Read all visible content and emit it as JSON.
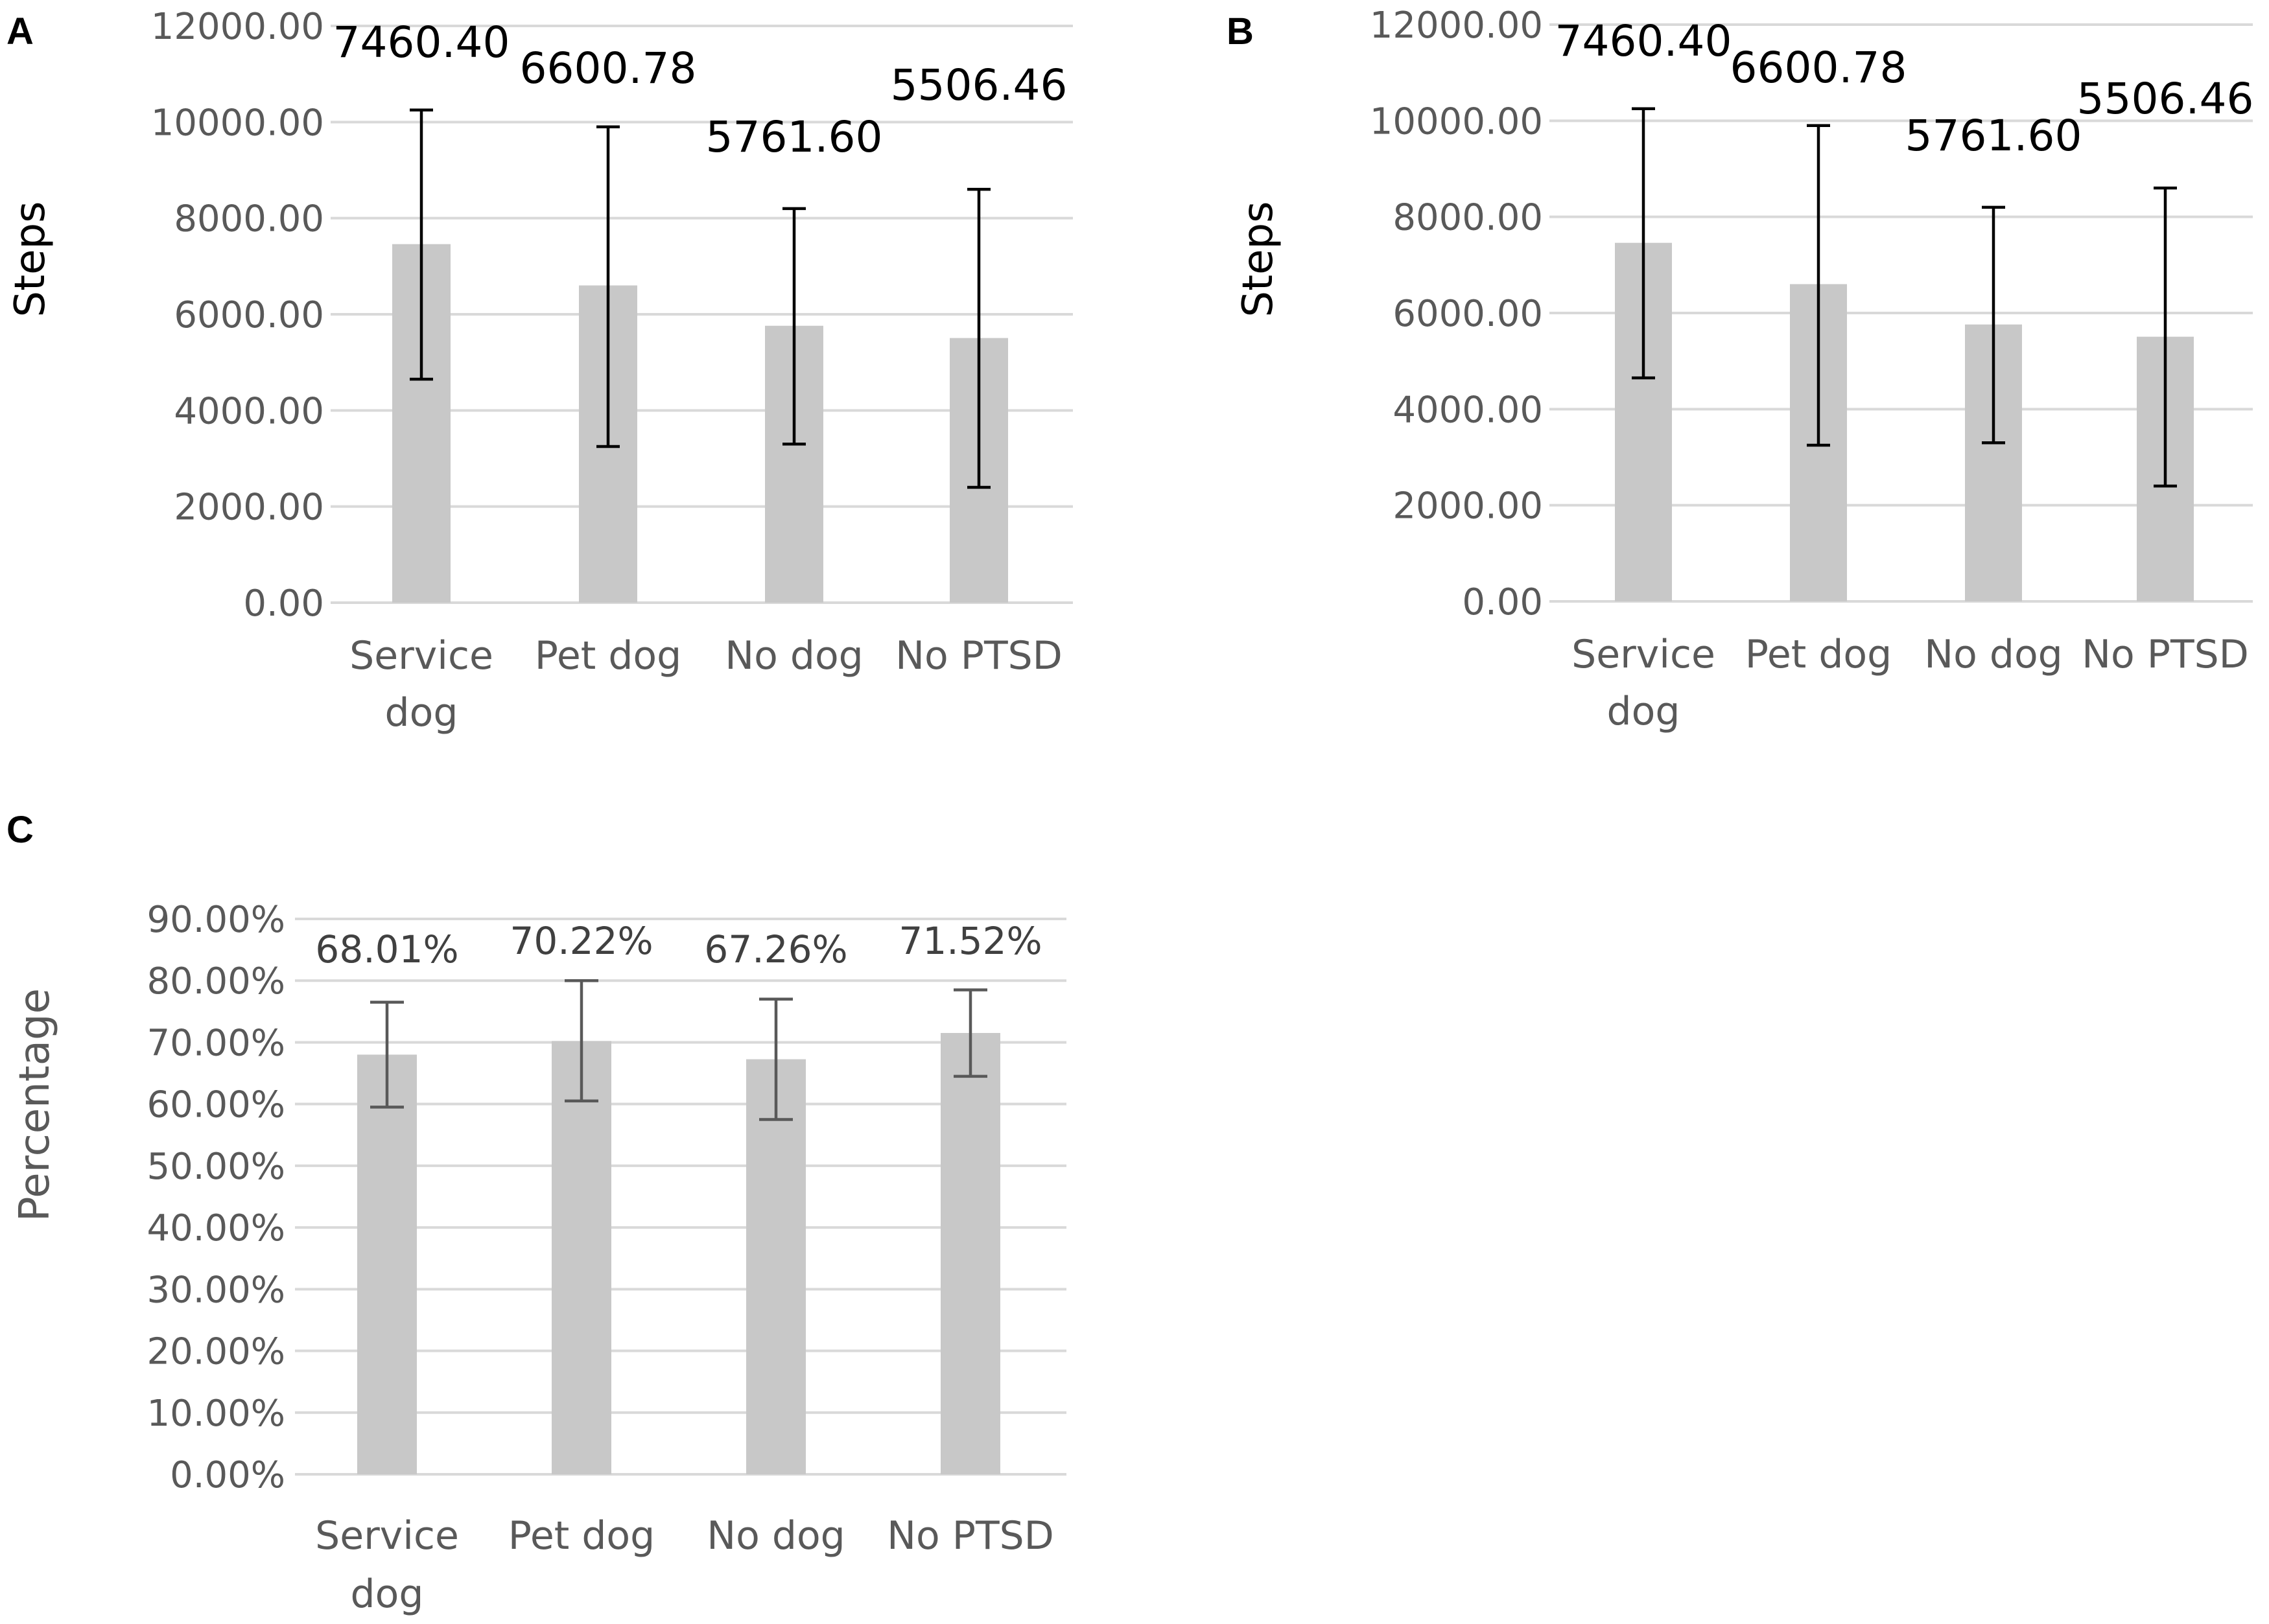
{
  "chart_data": [
    {
      "panel": "A",
      "type": "bar",
      "ylabel": "Steps",
      "categories": [
        [
          "Service",
          "dog"
        ],
        [
          "Pet dog"
        ],
        [
          "No dog"
        ],
        [
          "No PTSD"
        ]
      ],
      "values": [
        7460.4,
        6600.78,
        5761.6,
        5506.46
      ],
      "value_labels": [
        "7460.40",
        "6600.78",
        "5761.60",
        "5506.46"
      ],
      "error_low": [
        4650,
        3250,
        3300,
        2400
      ],
      "error_high": [
        10250,
        9900,
        8200,
        8600
      ],
      "ylim": [
        0,
        12000
      ],
      "yticks": [
        0,
        2000,
        4000,
        6000,
        8000,
        10000,
        12000
      ],
      "ytick_labels": [
        "0.00",
        "2000.00",
        "4000.00",
        "6000.00",
        "8000.00",
        "10000.00",
        "12000.00"
      ],
      "grid": true,
      "colors": {
        "bar": "#c8c8c8",
        "grid": "#d9d9d9",
        "tick": "#595959",
        "axis_title": "#000000",
        "data_label": "#000000",
        "error_bar": "#000000"
      }
    },
    {
      "panel": "B",
      "type": "bar",
      "ylabel": "Steps",
      "categories": [
        [
          "Service",
          "dog"
        ],
        [
          "Pet dog"
        ],
        [
          "No dog"
        ],
        [
          "No PTSD"
        ]
      ],
      "values": [
        7460.4,
        6600.78,
        5761.6,
        5506.46
      ],
      "value_labels": [
        "7460.40",
        "6600.78",
        "5761.60",
        "5506.46"
      ],
      "error_low": [
        4650,
        3250,
        3300,
        2400
      ],
      "error_high": [
        10250,
        9900,
        8200,
        8600
      ],
      "ylim": [
        0,
        12000
      ],
      "yticks": [
        0,
        2000,
        4000,
        6000,
        8000,
        10000,
        12000
      ],
      "ytick_labels": [
        "0.00",
        "2000.00",
        "4000.00",
        "6000.00",
        "8000.00",
        "10000.00",
        "12000.00"
      ],
      "grid": true,
      "colors": {
        "bar": "#c8c8c8",
        "grid": "#d9d9d9",
        "tick": "#595959",
        "axis_title": "#000000",
        "data_label": "#000000",
        "error_bar": "#000000"
      }
    },
    {
      "panel": "C",
      "type": "bar",
      "ylabel": "Percentage",
      "categories": [
        [
          "Service",
          "dog"
        ],
        [
          "Pet dog"
        ],
        [
          "No dog"
        ],
        [
          "No PTSD"
        ]
      ],
      "values": [
        68.01,
        70.22,
        67.26,
        71.52
      ],
      "value_labels": [
        "68.01%",
        "70.22%",
        "67.26%",
        "71.52%"
      ],
      "error_low": [
        59.5,
        60.5,
        57.5,
        64.5
      ],
      "error_high": [
        76.5,
        80.0,
        77.0,
        78.5
      ],
      "ylim": [
        0,
        90
      ],
      "yticks": [
        0,
        10,
        20,
        30,
        40,
        50,
        60,
        70,
        80,
        90
      ],
      "ytick_labels": [
        "0.00%",
        "10.00%",
        "20.00%",
        "30.00%",
        "40.00%",
        "50.00%",
        "60.00%",
        "70.00%",
        "80.00%",
        "90.00%"
      ],
      "grid": true,
      "colors": {
        "bar": "#c8c8c8",
        "grid": "#d9d9d9",
        "tick": "#595959",
        "axis_title": "#595959",
        "data_label": "#404040",
        "error_bar": "#595959"
      }
    }
  ]
}
